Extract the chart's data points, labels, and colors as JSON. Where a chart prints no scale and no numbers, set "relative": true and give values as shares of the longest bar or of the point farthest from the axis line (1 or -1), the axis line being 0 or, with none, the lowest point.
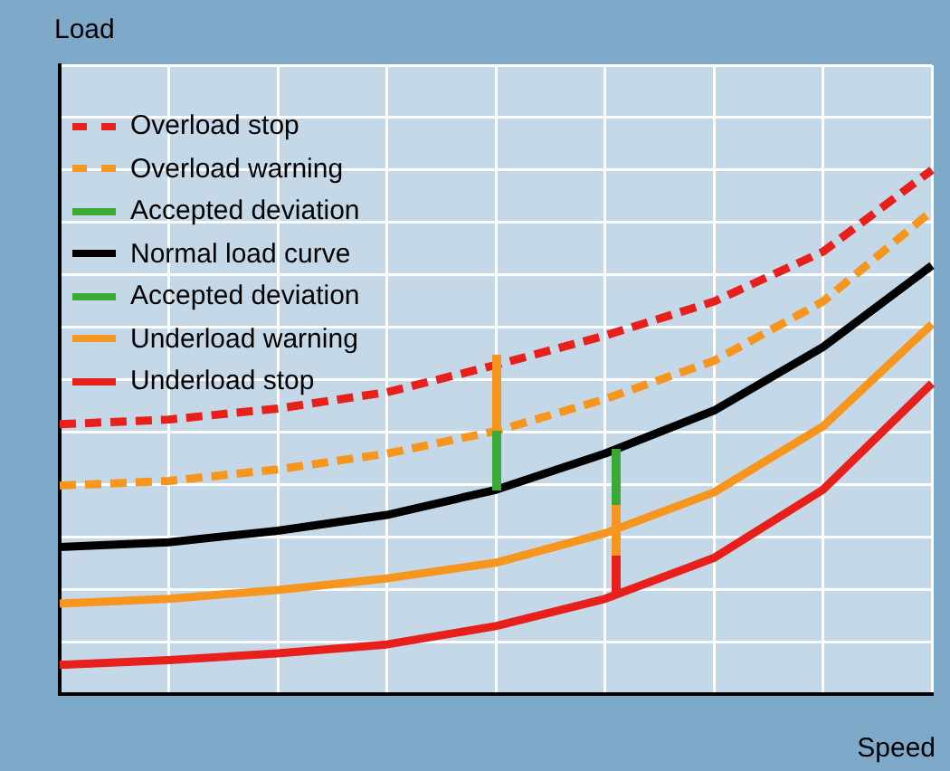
{
  "chart_data": {
    "type": "line",
    "relative": true,
    "xlabel": "Speed",
    "ylabel": "Load",
    "grid": true,
    "legend": "top left",
    "marker": "none",
    "categories": [
      null,
      null,
      null,
      null,
      null,
      null,
      null,
      null,
      null
    ],
    "annotations": [
      "Accepted deviation",
      "Accepted deviation"
    ],
    "series": [
      {
        "name": "Overload stop",
        "color": "#e8201c",
        "line_style": "dashed",
        "values": [
          0.515,
          0.524,
          0.545,
          0.576,
          0.628,
          0.684,
          0.749,
          0.844,
          1
        ]
      },
      {
        "name": "Overload warning",
        "color": "#f7961e",
        "line_style": "dashed",
        "values": [
          0.398,
          0.407,
          0.429,
          0.459,
          0.502,
          0.563,
          0.636,
          0.749,
          0.922
        ]
      },
      {
        "name": "Normal load curve",
        "color": "#000000",
        "line_style": "solid",
        "values": [
          0.281,
          0.29,
          0.312,
          0.342,
          0.39,
          0.459,
          0.541,
          0.662,
          0.818
        ]
      },
      {
        "name": "Underload warning",
        "color": "#f7961e",
        "line_style": "solid",
        "values": [
          0.173,
          0.182,
          0.199,
          0.221,
          0.251,
          0.307,
          0.385,
          0.511,
          0.706
        ]
      },
      {
        "name": "Underload stop",
        "color": "#e8201c",
        "line_style": "solid",
        "values": [
          0.056,
          0.065,
          0.078,
          0.095,
          0.13,
          0.182,
          0.26,
          0.39,
          0.593
        ]
      }
    ]
  }
}
